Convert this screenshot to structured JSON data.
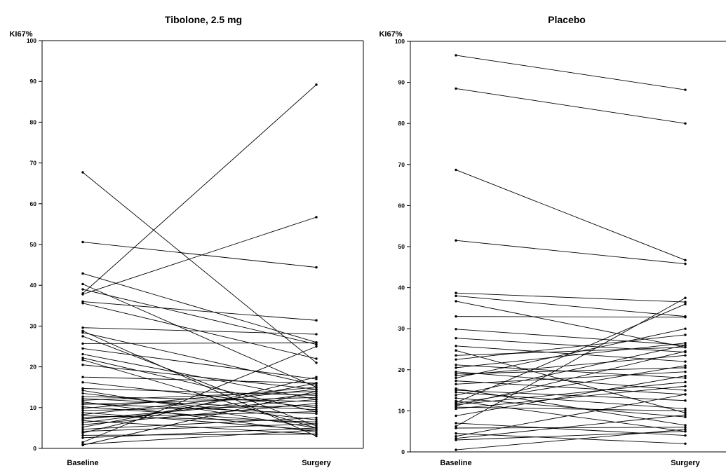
{
  "chart_data": [
    {
      "type": "line",
      "title": "Tibolone, 2.5 mg",
      "ylabel": "KI67%",
      "categories": [
        "Baseline",
        "Surgery"
      ],
      "ylim": [
        0,
        100
      ],
      "yticks": [
        0,
        10,
        20,
        30,
        40,
        50,
        60,
        70,
        80,
        90,
        100
      ],
      "grid": false,
      "pairs": [
        [
          67.7,
          21.0
        ],
        [
          50.6,
          44.4
        ],
        [
          42.9,
          26.0
        ],
        [
          40.3,
          15.0
        ],
        [
          39.0,
          25.5
        ],
        [
          38.0,
          89.2
        ],
        [
          37.8,
          56.7
        ],
        [
          36.0,
          31.4
        ],
        [
          35.6,
          22.0
        ],
        [
          29.6,
          28.0
        ],
        [
          28.8,
          3.0
        ],
        [
          28.4,
          15.5
        ],
        [
          27.5,
          5.5
        ],
        [
          25.7,
          25.9
        ],
        [
          24.5,
          17.0
        ],
        [
          23.1,
          12.0
        ],
        [
          22.2,
          9.0
        ],
        [
          21.7,
          5.0
        ],
        [
          20.5,
          14.5
        ],
        [
          17.5,
          16.0
        ],
        [
          16.2,
          10.0
        ],
        [
          14.7,
          13.0
        ],
        [
          14.2,
          5.0
        ],
        [
          13.5,
          7.0
        ],
        [
          12.7,
          11.5
        ],
        [
          12.2,
          9.5
        ],
        [
          11.8,
          14.0
        ],
        [
          11.4,
          4.0
        ],
        [
          11.0,
          8.5
        ],
        [
          10.8,
          12.5
        ],
        [
          10.2,
          6.0
        ],
        [
          9.8,
          15.0
        ],
        [
          9.3,
          10.5
        ],
        [
          8.8,
          4.5
        ],
        [
          8.3,
          14.5
        ],
        [
          8.0,
          6.5
        ],
        [
          7.6,
          9.0
        ],
        [
          7.2,
          12.0
        ],
        [
          6.8,
          3.5
        ],
        [
          6.3,
          13.5
        ],
        [
          5.8,
          11.0
        ],
        [
          5.2,
          16.0
        ],
        [
          4.7,
          7.5
        ],
        [
          4.2,
          6.0
        ],
        [
          3.8,
          17.5
        ],
        [
          3.2,
          3.5
        ],
        [
          2.6,
          5.0
        ],
        [
          1.5,
          25.0
        ],
        [
          1.0,
          4.5
        ],
        [
          0.8,
          14.0
        ]
      ]
    },
    {
      "type": "line",
      "title": "Placebo",
      "ylabel": "KI67%",
      "categories": [
        "Baseline",
        "Surgery"
      ],
      "ylim": [
        0,
        100
      ],
      "yticks": [
        0,
        10,
        20,
        30,
        40,
        50,
        60,
        70,
        80,
        90,
        100
      ],
      "grid": false,
      "pairs": [
        [
          96.6,
          88.2
        ],
        [
          88.5,
          80.0
        ],
        [
          68.7,
          46.7
        ],
        [
          51.5,
          45.8
        ],
        [
          38.7,
          36.5
        ],
        [
          38.0,
          33.0
        ],
        [
          36.7,
          25.5
        ],
        [
          33.0,
          32.8
        ],
        [
          29.9,
          26.0
        ],
        [
          27.7,
          24.3
        ],
        [
          25.8,
          22.0
        ],
        [
          24.7,
          9.5
        ],
        [
          23.5,
          25.5
        ],
        [
          22.5,
          28.5
        ],
        [
          21.2,
          18.0
        ],
        [
          20.5,
          26.5
        ],
        [
          19.5,
          15.0
        ],
        [
          19.0,
          20.5
        ],
        [
          18.6,
          23.5
        ],
        [
          18.0,
          30.0
        ],
        [
          17.3,
          14.0
        ],
        [
          16.5,
          19.5
        ],
        [
          15.4,
          6.5
        ],
        [
          15.0,
          12.5
        ],
        [
          14.5,
          10.5
        ],
        [
          13.8,
          26.0
        ],
        [
          13.1,
          8.5
        ],
        [
          12.4,
          5.0
        ],
        [
          12.0,
          36.0
        ],
        [
          11.8,
          21.0
        ],
        [
          11.5,
          17.0
        ],
        [
          11.2,
          24.5
        ],
        [
          10.9,
          10.0
        ],
        [
          10.5,
          16.0
        ],
        [
          8.8,
          18.5
        ],
        [
          7.0,
          4.0
        ],
        [
          6.2,
          37.5
        ],
        [
          5.8,
          6.0
        ],
        [
          4.5,
          2.0
        ],
        [
          3.8,
          14.0
        ],
        [
          3.3,
          9.0
        ],
        [
          2.9,
          5.0
        ],
        [
          0.5,
          5.5
        ]
      ]
    }
  ]
}
